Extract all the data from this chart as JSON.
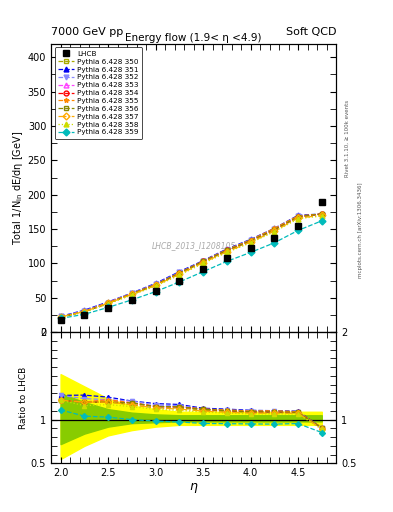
{
  "title_top_left": "7000 GeV pp",
  "title_top_right": "Soft QCD",
  "main_title": "Energy flow (1.9< η <4.9)",
  "watermark": "LHCB_2013_I1208105",
  "right_label_top": "Rivet 3.1.10, ≥ 100k events",
  "right_label_bottom": "mcplots.cern.ch [arXiv:1306.3436]",
  "ylabel_main": "Total 1/N$_{\\rm in}$ dE/dη [GeV]",
  "ylabel_ratio": "Ratio to LHCB",
  "xlabel": "η",
  "eta_values": [
    2.0,
    2.25,
    2.5,
    2.75,
    3.0,
    3.25,
    3.5,
    3.75,
    4.0,
    4.25,
    4.5,
    4.75
  ],
  "lhcb_values": [
    18,
    25,
    35,
    47,
    60,
    75,
    92,
    108,
    122,
    137,
    155,
    190
  ],
  "series": [
    {
      "label": "Pythia 6.428 350",
      "color": "#aaaa00",
      "linestyle": "--",
      "marker": "s",
      "marker_filled": false,
      "values": [
        22,
        30,
        42,
        55,
        68,
        85,
        102,
        118,
        132,
        148,
        167,
        172
      ]
    },
    {
      "label": "Pythia 6.428 351",
      "color": "#0000ee",
      "linestyle": "--",
      "marker": "^",
      "marker_filled": true,
      "values": [
        23,
        32,
        44,
        57,
        71,
        88,
        104,
        121,
        135,
        151,
        170,
        172
      ]
    },
    {
      "label": "Pythia 6.428 352",
      "color": "#8888ff",
      "linestyle": "--",
      "marker": "v",
      "marker_filled": true,
      "values": [
        23,
        31,
        43,
        57,
        70,
        87,
        103,
        120,
        134,
        150,
        169,
        171
      ]
    },
    {
      "label": "Pythia 6.428 353",
      "color": "#ff44ff",
      "linestyle": "--",
      "marker": "^",
      "marker_filled": false,
      "values": [
        22,
        30,
        43,
        56,
        69,
        86,
        103,
        119,
        133,
        149,
        168,
        172
      ]
    },
    {
      "label": "Pythia 6.428 354",
      "color": "#ff0000",
      "linestyle": "--",
      "marker": "o",
      "marker_filled": false,
      "values": [
        22,
        30,
        42,
        56,
        69,
        86,
        103,
        119,
        133,
        149,
        168,
        172
      ]
    },
    {
      "label": "Pythia 6.428 355",
      "color": "#ff8800",
      "linestyle": "--",
      "marker": "*",
      "marker_filled": true,
      "values": [
        22,
        30,
        43,
        56,
        69,
        86,
        103,
        120,
        134,
        151,
        169,
        172
      ]
    },
    {
      "label": "Pythia 6.428 356",
      "color": "#888800",
      "linestyle": "--",
      "marker": "s",
      "marker_filled": false,
      "values": [
        22,
        30,
        42,
        56,
        69,
        86,
        103,
        119,
        133,
        149,
        168,
        172
      ]
    },
    {
      "label": "Pythia 6.428 357",
      "color": "#ffaa00",
      "linestyle": "-.",
      "marker": "D",
      "marker_filled": false,
      "values": [
        22,
        30,
        42,
        55,
        68,
        84,
        101,
        117,
        131,
        147,
        166,
        170
      ]
    },
    {
      "label": "Pythia 6.428 358",
      "color": "#ccdd00",
      "linestyle": ":",
      "marker": "^",
      "marker_filled": true,
      "values": [
        22,
        29,
        41,
        54,
        67,
        83,
        100,
        116,
        130,
        146,
        165,
        169
      ]
    },
    {
      "label": "Pythia 6.428 359",
      "color": "#00bbbb",
      "linestyle": "--",
      "marker": "D",
      "marker_filled": true,
      "values": [
        20,
        26,
        36,
        47,
        59,
        73,
        88,
        103,
        116,
        130,
        148,
        162
      ]
    }
  ],
  "ratio_band_green_low": [
    0.72,
    0.84,
    0.92,
    0.96,
    0.97,
    0.98,
    0.98,
    0.98,
    0.98,
    0.98,
    0.98,
    0.98
  ],
  "ratio_band_green_high": [
    1.3,
    1.2,
    1.12,
    1.08,
    1.06,
    1.05,
    1.05,
    1.05,
    1.05,
    1.05,
    1.05,
    1.05
  ],
  "ratio_band_yellow_low": [
    0.55,
    0.7,
    0.82,
    0.88,
    0.92,
    0.94,
    0.94,
    0.94,
    0.94,
    0.94,
    0.94,
    0.94
  ],
  "ratio_band_yellow_high": [
    1.52,
    1.38,
    1.24,
    1.16,
    1.12,
    1.09,
    1.09,
    1.09,
    1.09,
    1.09,
    1.09,
    1.09
  ],
  "ylim_main": [
    0,
    420
  ],
  "ylim_ratio": [
    0.5,
    2.0
  ],
  "xlim": [
    1.9,
    4.9
  ]
}
